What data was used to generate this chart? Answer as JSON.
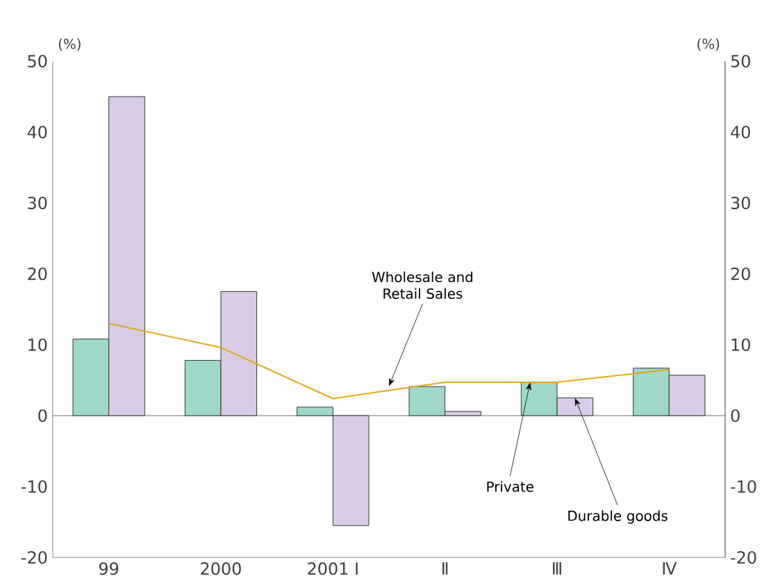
{
  "chart_data": {
    "type": "bar",
    "ylabel": "(%)",
    "y2label": "(%)",
    "categories": [
      "99",
      "2000",
      "2001 Ⅰ",
      "Ⅱ",
      "Ⅲ",
      "Ⅳ"
    ],
    "series": [
      {
        "name": "Private",
        "color": "#9fd8c8",
        "values": [
          10.8,
          7.8,
          1.2,
          4.1,
          4.7,
          6.7
        ]
      },
      {
        "name": "Durable goods",
        "color": "#d8cce6",
        "values": [
          45,
          17.5,
          -15.5,
          0.6,
          2.5,
          5.7
        ]
      },
      {
        "name": "Wholesale and Retail Sales",
        "type": "line",
        "color": "#e0a817",
        "values": [
          13,
          9.6,
          2.4,
          4.7,
          4.7,
          6.5
        ]
      }
    ],
    "ylim": [
      -20,
      50
    ],
    "yticks": [
      -20,
      -10,
      0,
      10,
      20,
      30,
      40,
      50
    ],
    "y2lim": [
      -20,
      50
    ],
    "y2ticks": [
      -20,
      -10,
      0,
      10,
      20,
      30,
      40,
      50
    ],
    "ref_lines": [
      {
        "axis": "y",
        "value": 0
      }
    ],
    "grid": false,
    "marker": "none"
  }
}
